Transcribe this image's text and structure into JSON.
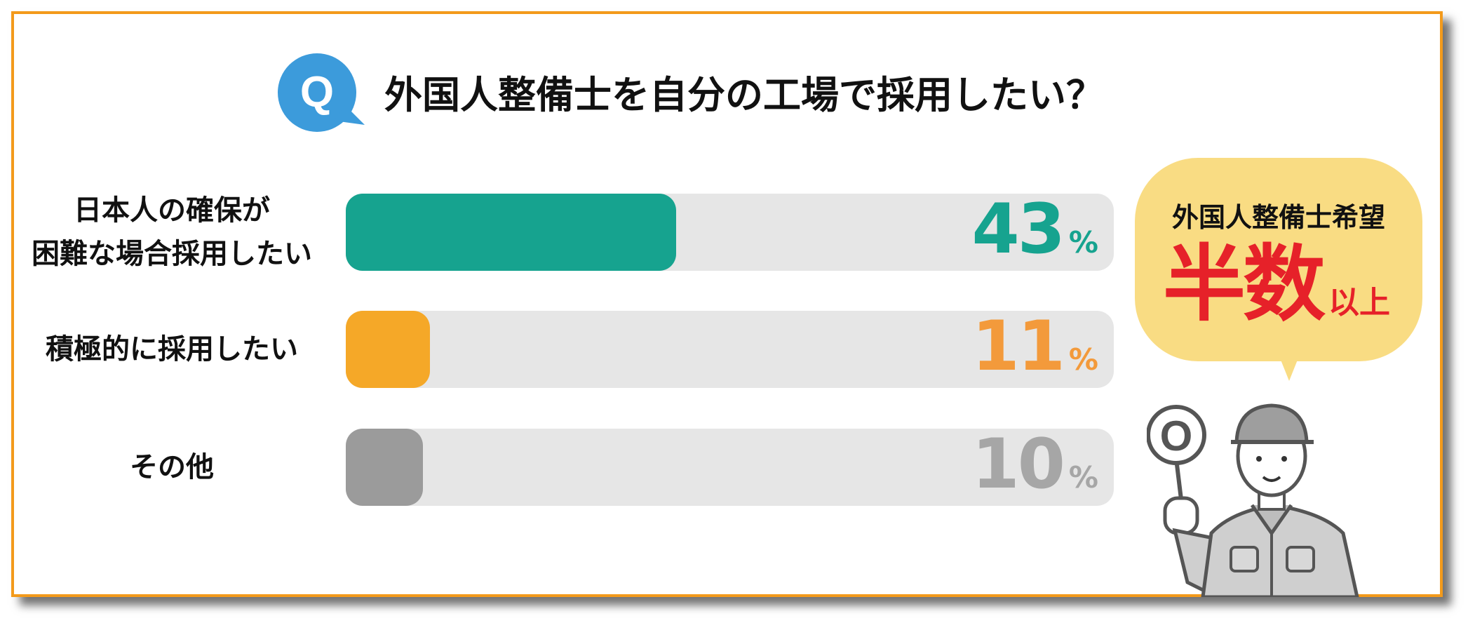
{
  "title": "外国人整備士を自分の工場で採用したい？",
  "q_badge": "Q",
  "chart_data": {
    "type": "bar",
    "orientation": "horizontal",
    "title": "外国人整備士を自分の工場で採用したい？",
    "categories": [
      [
        "日本人の確保が",
        "困難な場合採用したい"
      ],
      [
        "積極的に採用したい"
      ],
      [
        "その他"
      ]
    ],
    "values": [
      43,
      11,
      10
    ],
    "unit": "%",
    "colors": [
      "#16A38F",
      "#F5A828",
      "#9B9B9B"
    ],
    "label_colors": [
      "#16A38F",
      "#F39A3B",
      "#A6A6A6"
    ],
    "track_color": "#E6E6E6",
    "xlim": [
      0,
      100
    ]
  },
  "callout": {
    "heading": "外国人整備士希望",
    "main": "半数",
    "suffix": "以上",
    "bg_color": "#F9DC83",
    "accent_color": "#E62129"
  },
  "illustration": {
    "sign_text": "O"
  }
}
